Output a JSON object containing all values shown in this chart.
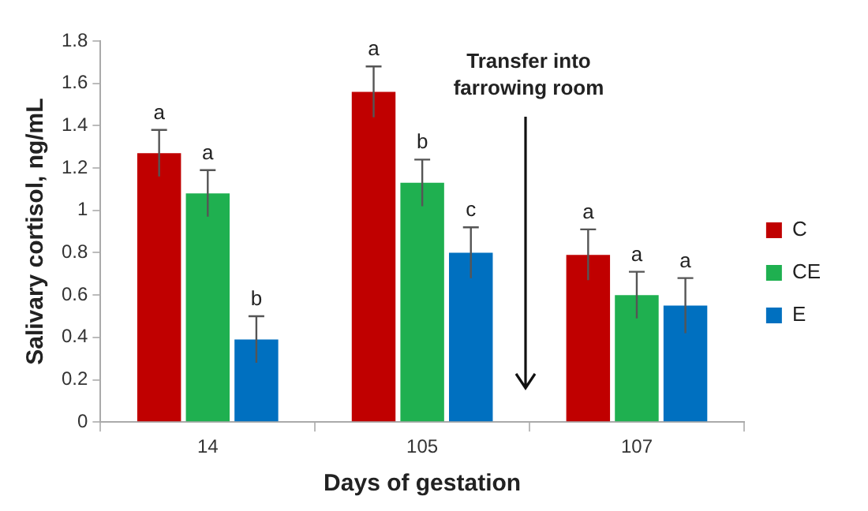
{
  "chart_data": {
    "type": "bar",
    "xlabel": "Days of gestation",
    "ylabel": "Salivary cortisol, ng/mL",
    "categories": [
      "14",
      "105",
      "107"
    ],
    "series": [
      {
        "name": "C",
        "color": "#c00000",
        "values": [
          1.27,
          1.56,
          0.79
        ],
        "errors": [
          0.11,
          0.12,
          0.12
        ]
      },
      {
        "name": "CE",
        "color": "#1fb050",
        "values": [
          1.08,
          1.13,
          0.6
        ],
        "errors": [
          0.11,
          0.11,
          0.11
        ]
      },
      {
        "name": "E",
        "color": "#0070c0",
        "values": [
          0.39,
          0.8,
          0.55
        ],
        "errors": [
          0.11,
          0.12,
          0.13
        ]
      }
    ],
    "ylim": [
      0,
      1.8
    ],
    "yticks": [
      0,
      0.2,
      0.4,
      0.6,
      0.8,
      1,
      1.2,
      1.4,
      1.6,
      1.8
    ],
    "grid": false,
    "legend": "right",
    "annotations": [
      "a",
      "a",
      "b",
      "a",
      "b",
      "c",
      "a",
      "a",
      "a",
      "Transfer into farrowing room"
    ]
  }
}
